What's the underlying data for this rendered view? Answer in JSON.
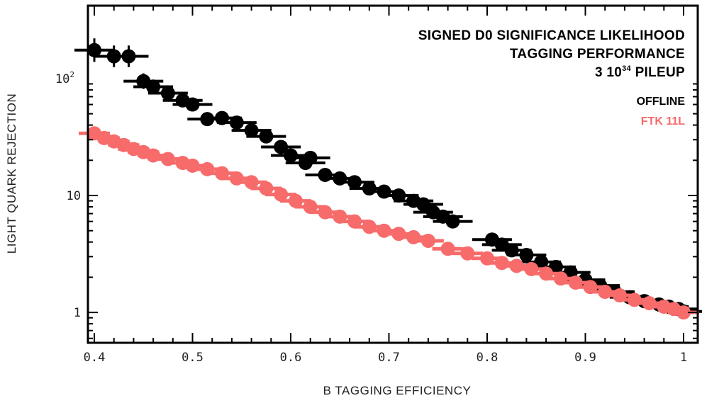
{
  "chart_data": {
    "type": "scatter",
    "title": [
      "SIGNED D0 SIGNIFICANCE LIKELIHOOD",
      "TAGGING PERFORMANCE"
    ],
    "pileup": {
      "prefix": "3 10",
      "sup": "34",
      "suffix": " PILEUP"
    },
    "xlabel": "B TAGGING EFFICIENCY",
    "ylabel": "LIGHT QUARK REJECTION",
    "xlim": [
      0.4,
      1.0
    ],
    "ylim": [
      0.55,
      420
    ],
    "yscale": "log",
    "xticks": [
      {
        "value": 0.4,
        "label": "0.4"
      },
      {
        "value": 0.5,
        "label": "0.5"
      },
      {
        "value": 0.6,
        "label": "0.6"
      },
      {
        "value": 0.7,
        "label": "0.7"
      },
      {
        "value": 0.8,
        "label": "0.8"
      },
      {
        "value": 0.9,
        "label": "0.9"
      },
      {
        "value": 1.0,
        "label": "1"
      }
    ],
    "yticks": [
      {
        "value": 1,
        "label": "1",
        "sup": ""
      },
      {
        "value": 10,
        "label": "10",
        "sup": ""
      },
      {
        "value": 100,
        "label": "10",
        "sup": "2"
      }
    ],
    "legend_position": "top-right",
    "grid": false,
    "series": [
      {
        "name": "OFFLINE",
        "color": "#000000",
        "points": [
          [
            0.4,
            175
          ],
          [
            0.42,
            155
          ],
          [
            0.435,
            155
          ],
          [
            0.45,
            95
          ],
          [
            0.46,
            85
          ],
          [
            0.475,
            75
          ],
          [
            0.49,
            65
          ],
          [
            0.5,
            60
          ],
          [
            0.515,
            45
          ],
          [
            0.53,
            46
          ],
          [
            0.545,
            42
          ],
          [
            0.56,
            36
          ],
          [
            0.575,
            32
          ],
          [
            0.59,
            26
          ],
          [
            0.6,
            22
          ],
          [
            0.615,
            19
          ],
          [
            0.62,
            21
          ],
          [
            0.635,
            15
          ],
          [
            0.65,
            14
          ],
          [
            0.665,
            13
          ],
          [
            0.68,
            11.5
          ],
          [
            0.695,
            10.8
          ],
          [
            0.71,
            10
          ],
          [
            0.725,
            9
          ],
          [
            0.735,
            8.4
          ],
          [
            0.745,
            7.2
          ],
          [
            0.755,
            6.6
          ],
          [
            0.765,
            6.0
          ],
          [
            0.805,
            4.2
          ],
          [
            0.815,
            3.8
          ],
          [
            0.825,
            3.4
          ],
          [
            0.84,
            3.1
          ],
          [
            0.855,
            2.7
          ],
          [
            0.87,
            2.45
          ],
          [
            0.885,
            2.2
          ],
          [
            0.9,
            1.9
          ],
          [
            0.915,
            1.7
          ],
          [
            0.93,
            1.5
          ],
          [
            0.945,
            1.35
          ],
          [
            0.96,
            1.25
          ],
          [
            0.975,
            1.17
          ],
          [
            0.985,
            1.12
          ],
          [
            0.995,
            1.07
          ],
          [
            1.0,
            1.02
          ]
        ]
      },
      {
        "name": "FTK 11L",
        "color": "#f76b6b",
        "points": [
          [
            0.4,
            34
          ],
          [
            0.41,
            31
          ],
          [
            0.42,
            29
          ],
          [
            0.43,
            27
          ],
          [
            0.44,
            25
          ],
          [
            0.45,
            23.5
          ],
          [
            0.46,
            22
          ],
          [
            0.475,
            20.5
          ],
          [
            0.49,
            19
          ],
          [
            0.5,
            18
          ],
          [
            0.515,
            16.8
          ],
          [
            0.53,
            15.5
          ],
          [
            0.545,
            14
          ],
          [
            0.56,
            13
          ],
          [
            0.575,
            11.5
          ],
          [
            0.59,
            10.2
          ],
          [
            0.605,
            9.0
          ],
          [
            0.62,
            8.0
          ],
          [
            0.635,
            7.2
          ],
          [
            0.65,
            6.6
          ],
          [
            0.665,
            6.0
          ],
          [
            0.68,
            5.4
          ],
          [
            0.695,
            5.0
          ],
          [
            0.71,
            4.7
          ],
          [
            0.725,
            4.4
          ],
          [
            0.74,
            4.1
          ],
          [
            0.76,
            3.5
          ],
          [
            0.78,
            3.2
          ],
          [
            0.8,
            2.9
          ],
          [
            0.815,
            2.65
          ],
          [
            0.83,
            2.5
          ],
          [
            0.845,
            2.35
          ],
          [
            0.86,
            2.15
          ],
          [
            0.875,
            1.95
          ],
          [
            0.89,
            1.8
          ],
          [
            0.905,
            1.65
          ],
          [
            0.92,
            1.5
          ],
          [
            0.935,
            1.4
          ],
          [
            0.95,
            1.28
          ],
          [
            0.965,
            1.2
          ],
          [
            0.98,
            1.12
          ],
          [
            0.99,
            1.07
          ],
          [
            1.0,
            1.0
          ]
        ]
      }
    ]
  }
}
